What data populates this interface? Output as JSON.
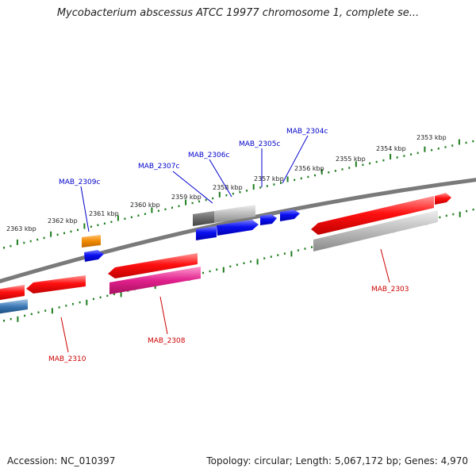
{
  "title": "Mycobacterium abscessus ATCC 19977 chromosome 1, complete se...",
  "footer": {
    "accession": "Accession: NC_010397",
    "info": "Topology: circular; Length: 5,067,172 bp; Genes: 4,970"
  },
  "colors": {
    "backbone": "#7a7a7a",
    "ticks": "#1e7d1e",
    "forward_label": "#0000cc",
    "reverse_label": "#cc0000",
    "gene_red": "#e8000b",
    "gene_blue": "#0a10e6",
    "gene_orange": "#f08a00",
    "gene_grey": "#b3b3b3",
    "gene_dark_grey": "#6a6a6a",
    "gene_pink": "#e0208c",
    "gene_steelblue": "#3a78b4"
  },
  "tick_labels": [
    "2363 kbp",
    "2362 kbp",
    "2361 kbp",
    "2360 kbp",
    "2359 kbp",
    "2358 kbp",
    "2357 kbp",
    "2356 kbp",
    "2355 kbp",
    "2354 kbp",
    "2353 kbp"
  ],
  "forward_labels": [
    "MAB_2309c",
    "MAB_2307c",
    "MAB_2306c",
    "MAB_2305c",
    "MAB_2304c"
  ],
  "reverse_labels": [
    "MAB_2310",
    "MAB_2308",
    "MAB_2303"
  ]
}
